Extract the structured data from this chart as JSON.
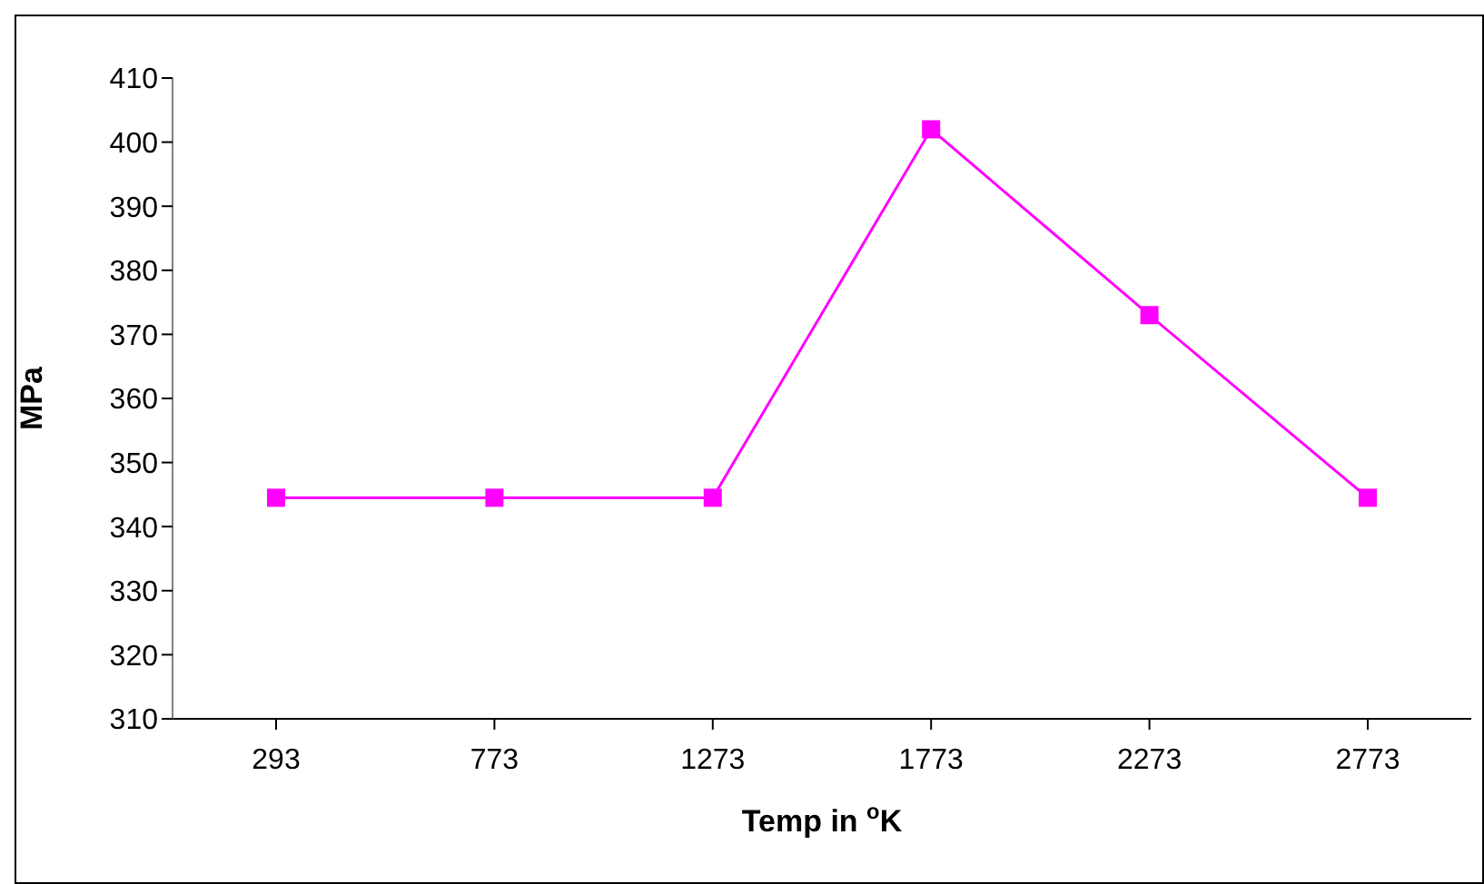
{
  "chart_data": {
    "type": "line",
    "xlabel": "Temp in $^{o}$K",
    "ylabel": "MPa",
    "categories": [
      "293",
      "773",
      "1273",
      "1773",
      "2273",
      "2773"
    ],
    "series": [
      {
        "color": "#ff00ff",
        "values": [
          344.5,
          344.5,
          344.5,
          402,
          373,
          344.5
        ]
      }
    ],
    "ylim": [
      310,
      410
    ],
    "yticks": [
      310,
      320,
      330,
      340,
      350,
      360,
      370,
      380,
      390,
      400,
      410
    ],
    "grid": false,
    "legend": false,
    "marker": "square",
    "line_style": "solid"
  }
}
